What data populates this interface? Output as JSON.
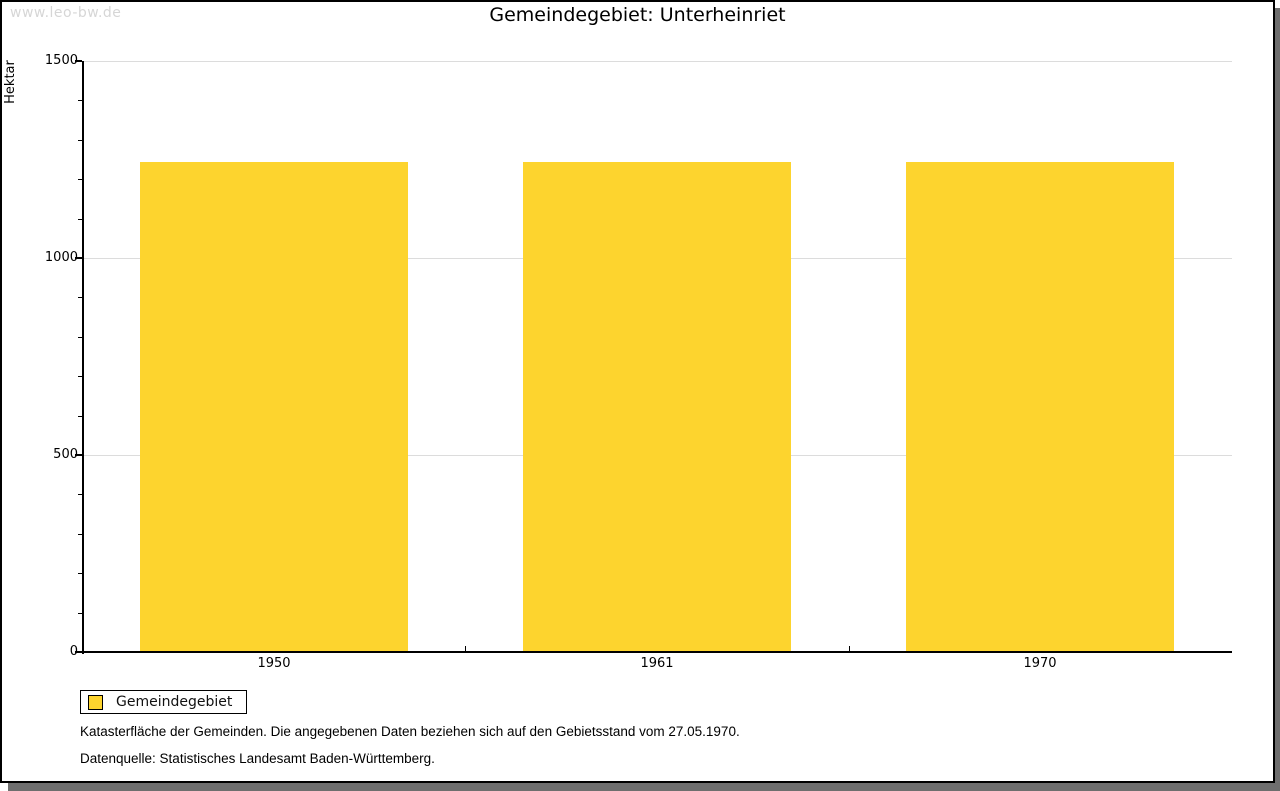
{
  "watermark": "www.leo-bw.de",
  "title": "Gemeindegebiet: Unterheinriet",
  "legend": {
    "label": "Gemeindegebiet"
  },
  "footnotes": {
    "line1": "Katasterfläche der Gemeinden. Die angegebenen Daten beziehen sich auf den Gebietsstand vom 27.05.1970.",
    "line2": "Datenquelle: Statistisches Landesamt Baden-Württemberg."
  },
  "colors": {
    "bar": "#fdd42e",
    "gridline": "#dcdcdc",
    "axis": "#000000",
    "watermark": "#d6d6d6",
    "shadow": "#6e6e6e"
  },
  "chart_data": {
    "type": "bar",
    "title": "Gemeindegebiet: Unterheinriet",
    "categories": [
      "1950",
      "1961",
      "1970"
    ],
    "values": [
      1240,
      1240,
      1240
    ],
    "series_name": "Gemeindegebiet",
    "xlabel": "",
    "ylabel": "Hektar",
    "ylim": [
      0,
      1500
    ],
    "yticks": [
      0,
      500,
      1000,
      1500
    ],
    "y_minor_tick_step": 100,
    "grid": "horizontal-major",
    "legend_position": "bottom-left",
    "bar_color": "#fdd42e",
    "unit": "Hektar"
  }
}
